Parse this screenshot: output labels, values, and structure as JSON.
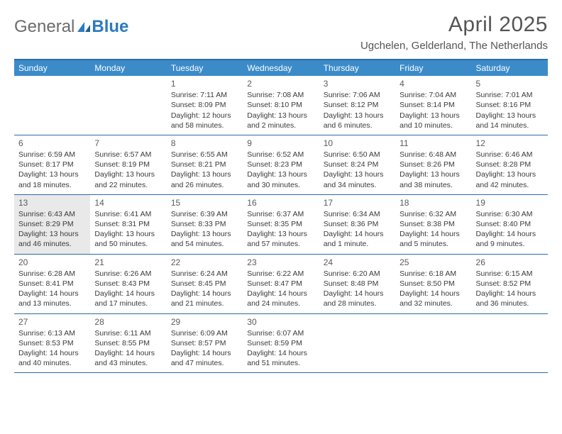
{
  "logo": {
    "part1": "General",
    "part2": "Blue"
  },
  "title": "April 2025",
  "location": "Ugchelen, Gelderland, The Netherlands",
  "colors": {
    "header_bg": "#3b8bc9",
    "header_text": "#ffffff",
    "border": "#2b6ca3",
    "today_bg": "#e9e9e9",
    "logo_gray": "#6b6b6b",
    "logo_blue": "#2b7bbf",
    "text": "#333333"
  },
  "day_headers": [
    "Sunday",
    "Monday",
    "Tuesday",
    "Wednesday",
    "Thursday",
    "Friday",
    "Saturday"
  ],
  "weeks": [
    [
      {
        "day": "",
        "sunrise": "",
        "sunset": "",
        "daylight": "",
        "empty": true
      },
      {
        "day": "",
        "sunrise": "",
        "sunset": "",
        "daylight": "",
        "empty": true
      },
      {
        "day": "1",
        "sunrise": "Sunrise: 7:11 AM",
        "sunset": "Sunset: 8:09 PM",
        "daylight": "Daylight: 12 hours and 58 minutes."
      },
      {
        "day": "2",
        "sunrise": "Sunrise: 7:08 AM",
        "sunset": "Sunset: 8:10 PM",
        "daylight": "Daylight: 13 hours and 2 minutes."
      },
      {
        "day": "3",
        "sunrise": "Sunrise: 7:06 AM",
        "sunset": "Sunset: 8:12 PM",
        "daylight": "Daylight: 13 hours and 6 minutes."
      },
      {
        "day": "4",
        "sunrise": "Sunrise: 7:04 AM",
        "sunset": "Sunset: 8:14 PM",
        "daylight": "Daylight: 13 hours and 10 minutes."
      },
      {
        "day": "5",
        "sunrise": "Sunrise: 7:01 AM",
        "sunset": "Sunset: 8:16 PM",
        "daylight": "Daylight: 13 hours and 14 minutes."
      }
    ],
    [
      {
        "day": "6",
        "sunrise": "Sunrise: 6:59 AM",
        "sunset": "Sunset: 8:17 PM",
        "daylight": "Daylight: 13 hours and 18 minutes."
      },
      {
        "day": "7",
        "sunrise": "Sunrise: 6:57 AM",
        "sunset": "Sunset: 8:19 PM",
        "daylight": "Daylight: 13 hours and 22 minutes."
      },
      {
        "day": "8",
        "sunrise": "Sunrise: 6:55 AM",
        "sunset": "Sunset: 8:21 PM",
        "daylight": "Daylight: 13 hours and 26 minutes."
      },
      {
        "day": "9",
        "sunrise": "Sunrise: 6:52 AM",
        "sunset": "Sunset: 8:23 PM",
        "daylight": "Daylight: 13 hours and 30 minutes."
      },
      {
        "day": "10",
        "sunrise": "Sunrise: 6:50 AM",
        "sunset": "Sunset: 8:24 PM",
        "daylight": "Daylight: 13 hours and 34 minutes."
      },
      {
        "day": "11",
        "sunrise": "Sunrise: 6:48 AM",
        "sunset": "Sunset: 8:26 PM",
        "daylight": "Daylight: 13 hours and 38 minutes."
      },
      {
        "day": "12",
        "sunrise": "Sunrise: 6:46 AM",
        "sunset": "Sunset: 8:28 PM",
        "daylight": "Daylight: 13 hours and 42 minutes."
      }
    ],
    [
      {
        "day": "13",
        "sunrise": "Sunrise: 6:43 AM",
        "sunset": "Sunset: 8:29 PM",
        "daylight": "Daylight: 13 hours and 46 minutes.",
        "today": true
      },
      {
        "day": "14",
        "sunrise": "Sunrise: 6:41 AM",
        "sunset": "Sunset: 8:31 PM",
        "daylight": "Daylight: 13 hours and 50 minutes."
      },
      {
        "day": "15",
        "sunrise": "Sunrise: 6:39 AM",
        "sunset": "Sunset: 8:33 PM",
        "daylight": "Daylight: 13 hours and 54 minutes."
      },
      {
        "day": "16",
        "sunrise": "Sunrise: 6:37 AM",
        "sunset": "Sunset: 8:35 PM",
        "daylight": "Daylight: 13 hours and 57 minutes."
      },
      {
        "day": "17",
        "sunrise": "Sunrise: 6:34 AM",
        "sunset": "Sunset: 8:36 PM",
        "daylight": "Daylight: 14 hours and 1 minute."
      },
      {
        "day": "18",
        "sunrise": "Sunrise: 6:32 AM",
        "sunset": "Sunset: 8:38 PM",
        "daylight": "Daylight: 14 hours and 5 minutes."
      },
      {
        "day": "19",
        "sunrise": "Sunrise: 6:30 AM",
        "sunset": "Sunset: 8:40 PM",
        "daylight": "Daylight: 14 hours and 9 minutes."
      }
    ],
    [
      {
        "day": "20",
        "sunrise": "Sunrise: 6:28 AM",
        "sunset": "Sunset: 8:41 PM",
        "daylight": "Daylight: 14 hours and 13 minutes."
      },
      {
        "day": "21",
        "sunrise": "Sunrise: 6:26 AM",
        "sunset": "Sunset: 8:43 PM",
        "daylight": "Daylight: 14 hours and 17 minutes."
      },
      {
        "day": "22",
        "sunrise": "Sunrise: 6:24 AM",
        "sunset": "Sunset: 8:45 PM",
        "daylight": "Daylight: 14 hours and 21 minutes."
      },
      {
        "day": "23",
        "sunrise": "Sunrise: 6:22 AM",
        "sunset": "Sunset: 8:47 PM",
        "daylight": "Daylight: 14 hours and 24 minutes."
      },
      {
        "day": "24",
        "sunrise": "Sunrise: 6:20 AM",
        "sunset": "Sunset: 8:48 PM",
        "daylight": "Daylight: 14 hours and 28 minutes."
      },
      {
        "day": "25",
        "sunrise": "Sunrise: 6:18 AM",
        "sunset": "Sunset: 8:50 PM",
        "daylight": "Daylight: 14 hours and 32 minutes."
      },
      {
        "day": "26",
        "sunrise": "Sunrise: 6:15 AM",
        "sunset": "Sunset: 8:52 PM",
        "daylight": "Daylight: 14 hours and 36 minutes."
      }
    ],
    [
      {
        "day": "27",
        "sunrise": "Sunrise: 6:13 AM",
        "sunset": "Sunset: 8:53 PM",
        "daylight": "Daylight: 14 hours and 40 minutes."
      },
      {
        "day": "28",
        "sunrise": "Sunrise: 6:11 AM",
        "sunset": "Sunset: 8:55 PM",
        "daylight": "Daylight: 14 hours and 43 minutes."
      },
      {
        "day": "29",
        "sunrise": "Sunrise: 6:09 AM",
        "sunset": "Sunset: 8:57 PM",
        "daylight": "Daylight: 14 hours and 47 minutes."
      },
      {
        "day": "30",
        "sunrise": "Sunrise: 6:07 AM",
        "sunset": "Sunset: 8:59 PM",
        "daylight": "Daylight: 14 hours and 51 minutes."
      },
      {
        "day": "",
        "sunrise": "",
        "sunset": "",
        "daylight": "",
        "empty": true
      },
      {
        "day": "",
        "sunrise": "",
        "sunset": "",
        "daylight": "",
        "empty": true
      },
      {
        "day": "",
        "sunrise": "",
        "sunset": "",
        "daylight": "",
        "empty": true
      }
    ]
  ]
}
